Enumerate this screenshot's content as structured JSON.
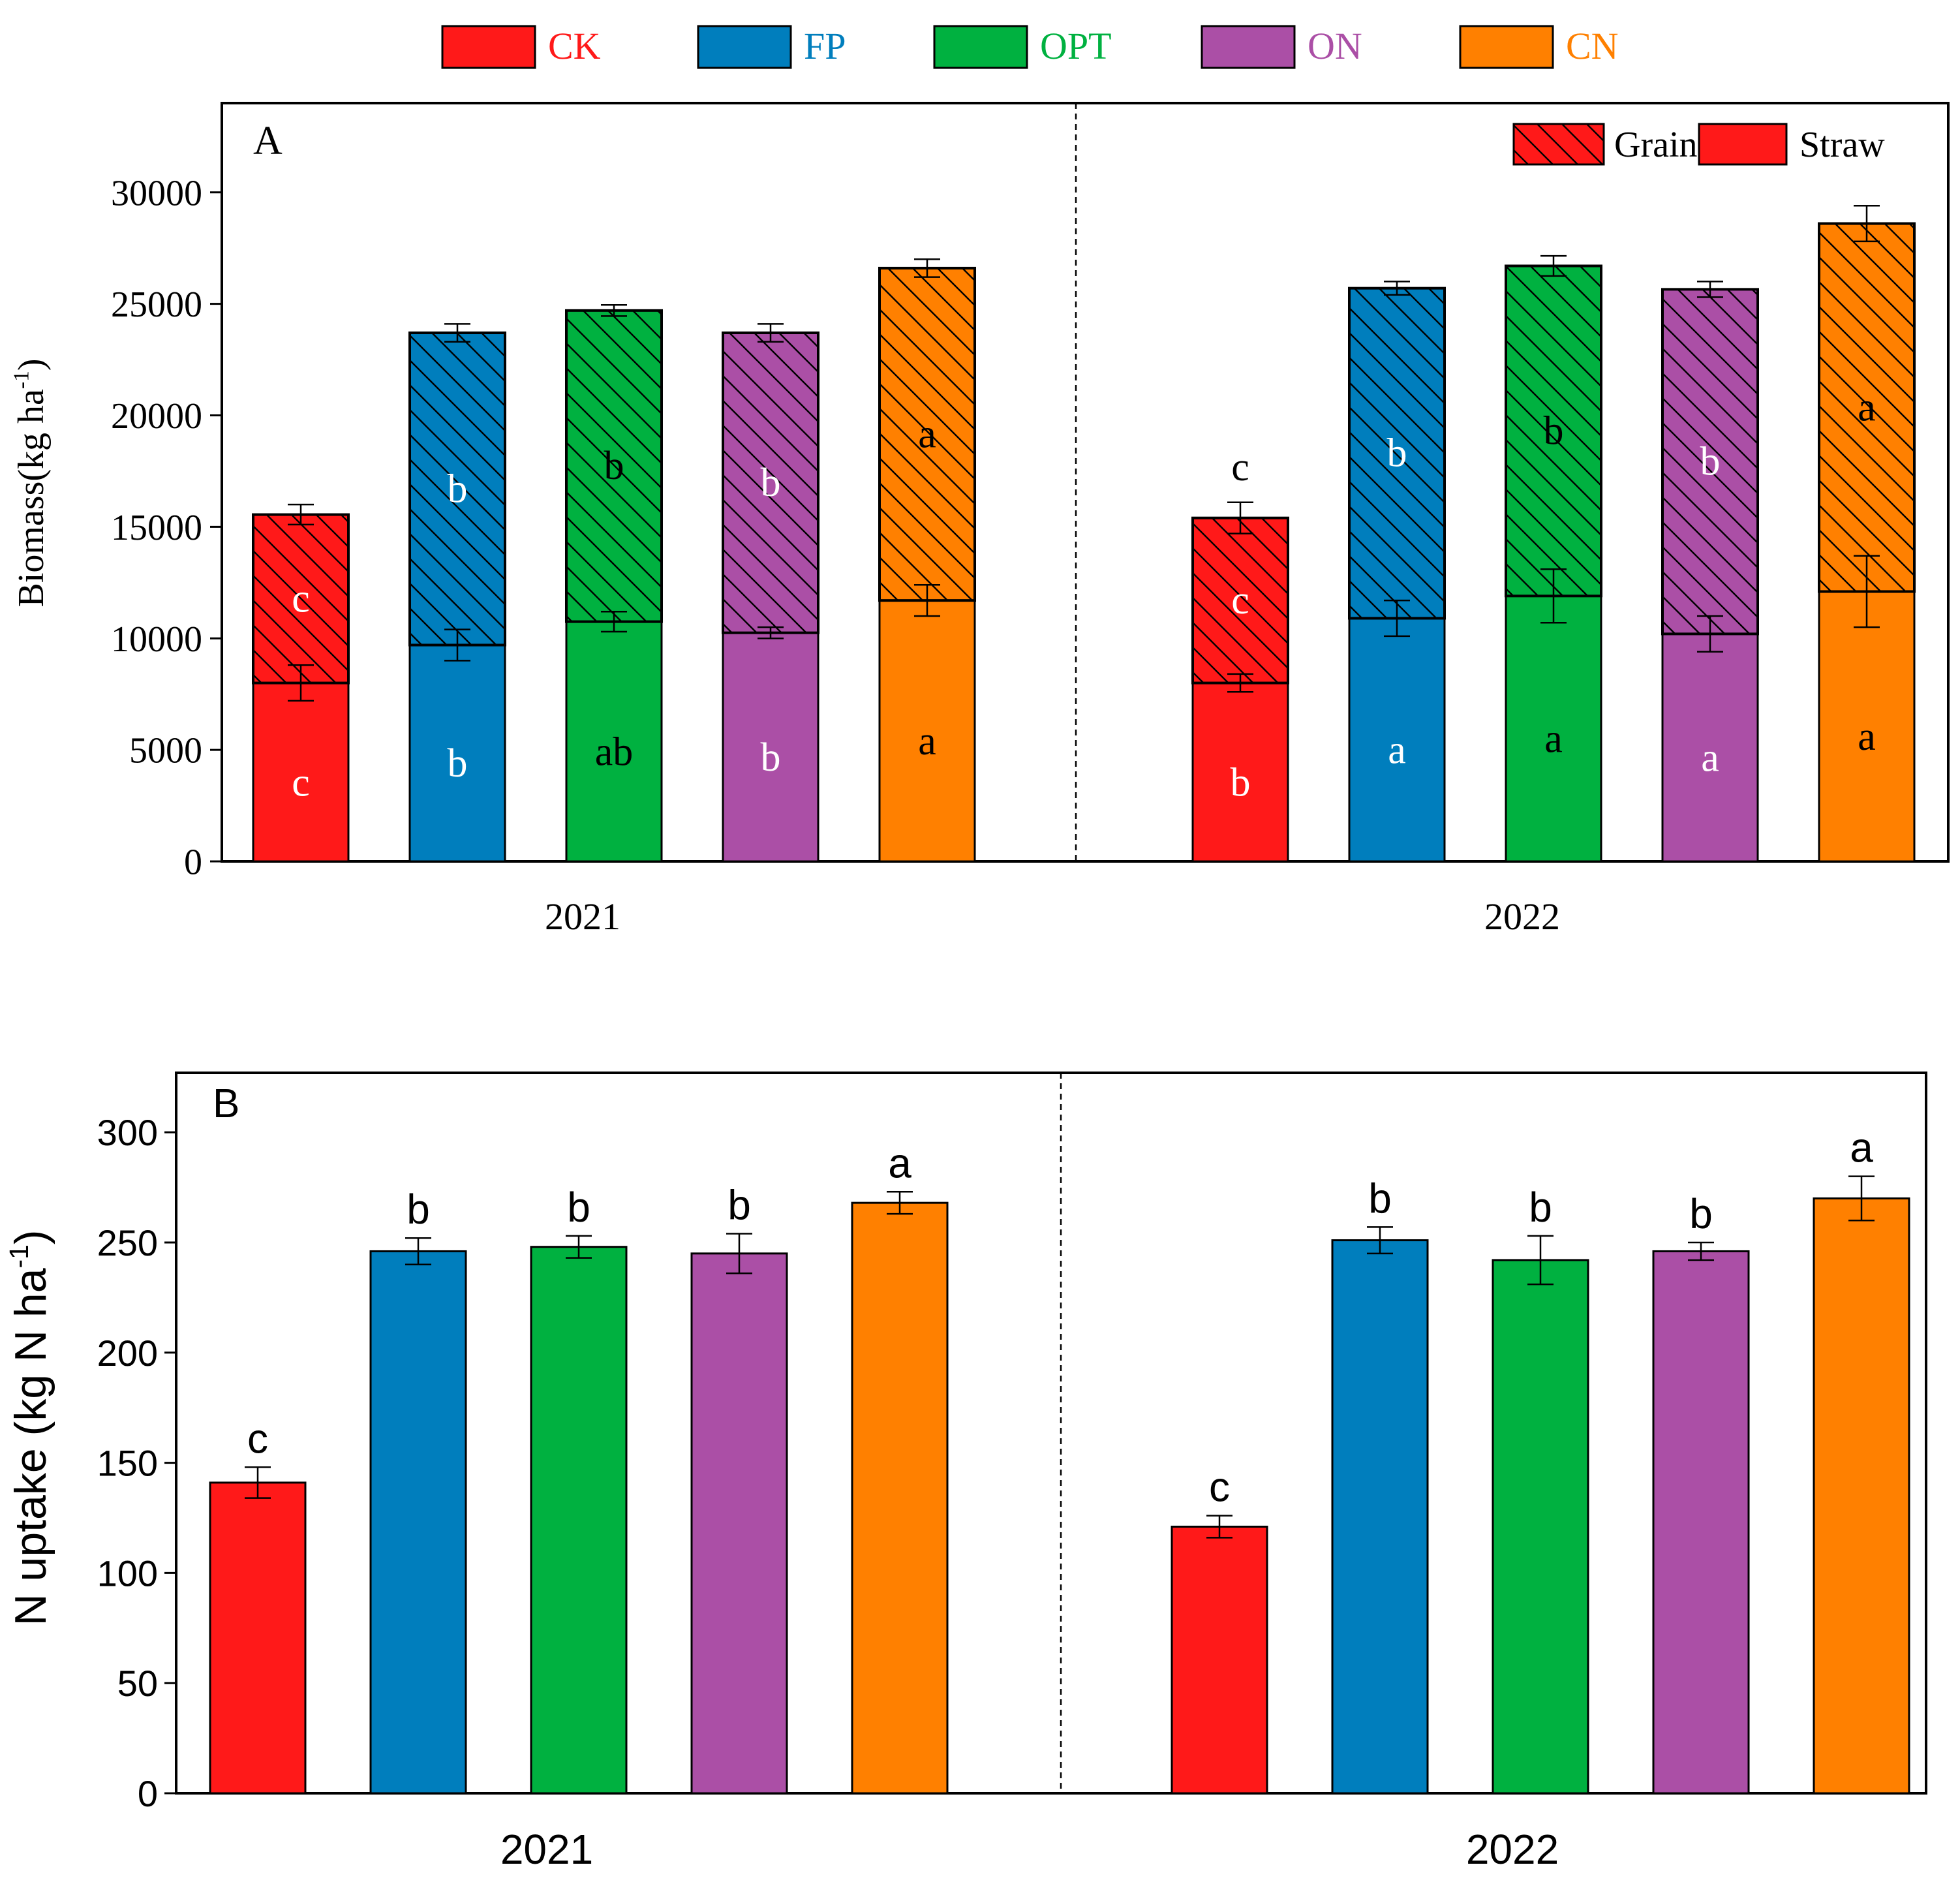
{
  "legend_top": {
    "entries": [
      {
        "label": "CK",
        "color": "#FF1919"
      },
      {
        "label": "FP",
        "color": "#007EBD"
      },
      {
        "label": "OPT",
        "color": "#00B140"
      },
      {
        "label": "ON",
        "color": "#AB4FA6"
      },
      {
        "label": "CN",
        "color": "#FF8000"
      }
    ]
  },
  "chart_data": [
    {
      "type": "bar",
      "stacked": true,
      "panel_label": "A",
      "ylabel": "Biomass(kg ha",
      "ylabel_sup": "-1",
      "ylabel_close": ")",
      "ylim": [
        0,
        34000
      ],
      "yticks": [
        0,
        5000,
        10000,
        15000,
        20000,
        25000,
        30000
      ],
      "groups": [
        "2021",
        "2022"
      ],
      "treatments": [
        "CK",
        "FP",
        "OPT",
        "ON",
        "CN"
      ],
      "stack_legend": [
        {
          "label": "Grain",
          "pattern": "hatched",
          "color": "#FF1919"
        },
        {
          "label": "Straw",
          "pattern": "solid",
          "color": "#FF1919"
        }
      ],
      "series": [
        {
          "name": "Straw",
          "values_2021": [
            8000,
            9700,
            10750,
            10250,
            11700
          ],
          "errors_2021": [
            800,
            700,
            450,
            250,
            700
          ],
          "letters_2021": [
            "c",
            "b",
            "ab",
            "b",
            "a"
          ],
          "values_2022": [
            8000,
            10900,
            11900,
            10200,
            12100
          ],
          "errors_2022": [
            400,
            800,
            1200,
            800,
            1600
          ],
          "letters_2022": [
            "b",
            "a",
            "a",
            "a",
            "a"
          ]
        },
        {
          "name": "Grain",
          "values_2021": [
            7550,
            14000,
            13950,
            13450,
            14900
          ],
          "errors_2021": [
            450,
            400,
            250,
            400,
            400
          ],
          "letters_2021": [
            "c",
            "b",
            "b",
            "b",
            "a"
          ],
          "values_2022": [
            7400,
            14800,
            14800,
            15450,
            16500
          ],
          "errors_2022": [
            700,
            300,
            450,
            350,
            800
          ],
          "letters_2022": [
            "c",
            "b",
            "b",
            "b",
            "a"
          ],
          "extra_letter_2022_CK": "c"
        }
      ]
    },
    {
      "type": "bar",
      "panel_label": "B",
      "ylabel": "N uptake (kg N ha",
      "ylabel_sup": "-1",
      "ylabel_close": ")",
      "ylim": [
        0,
        300
      ],
      "yticks": [
        0,
        50,
        100,
        150,
        200,
        250,
        300
      ],
      "groups": [
        "2021",
        "2022"
      ],
      "treatments": [
        "CK",
        "FP",
        "OPT",
        "ON",
        "CN"
      ],
      "values_2021": [
        141,
        246,
        248,
        245,
        268
      ],
      "errors_2021": [
        7,
        6,
        5,
        9,
        5
      ],
      "letters_2021": [
        "c",
        "b",
        "b",
        "b",
        "a"
      ],
      "values_2022": [
        121,
        251,
        242,
        246,
        270
      ],
      "errors_2022": [
        5,
        6,
        11,
        4,
        10
      ],
      "letters_2022": [
        "c",
        "b",
        "b",
        "b",
        "a"
      ]
    }
  ]
}
